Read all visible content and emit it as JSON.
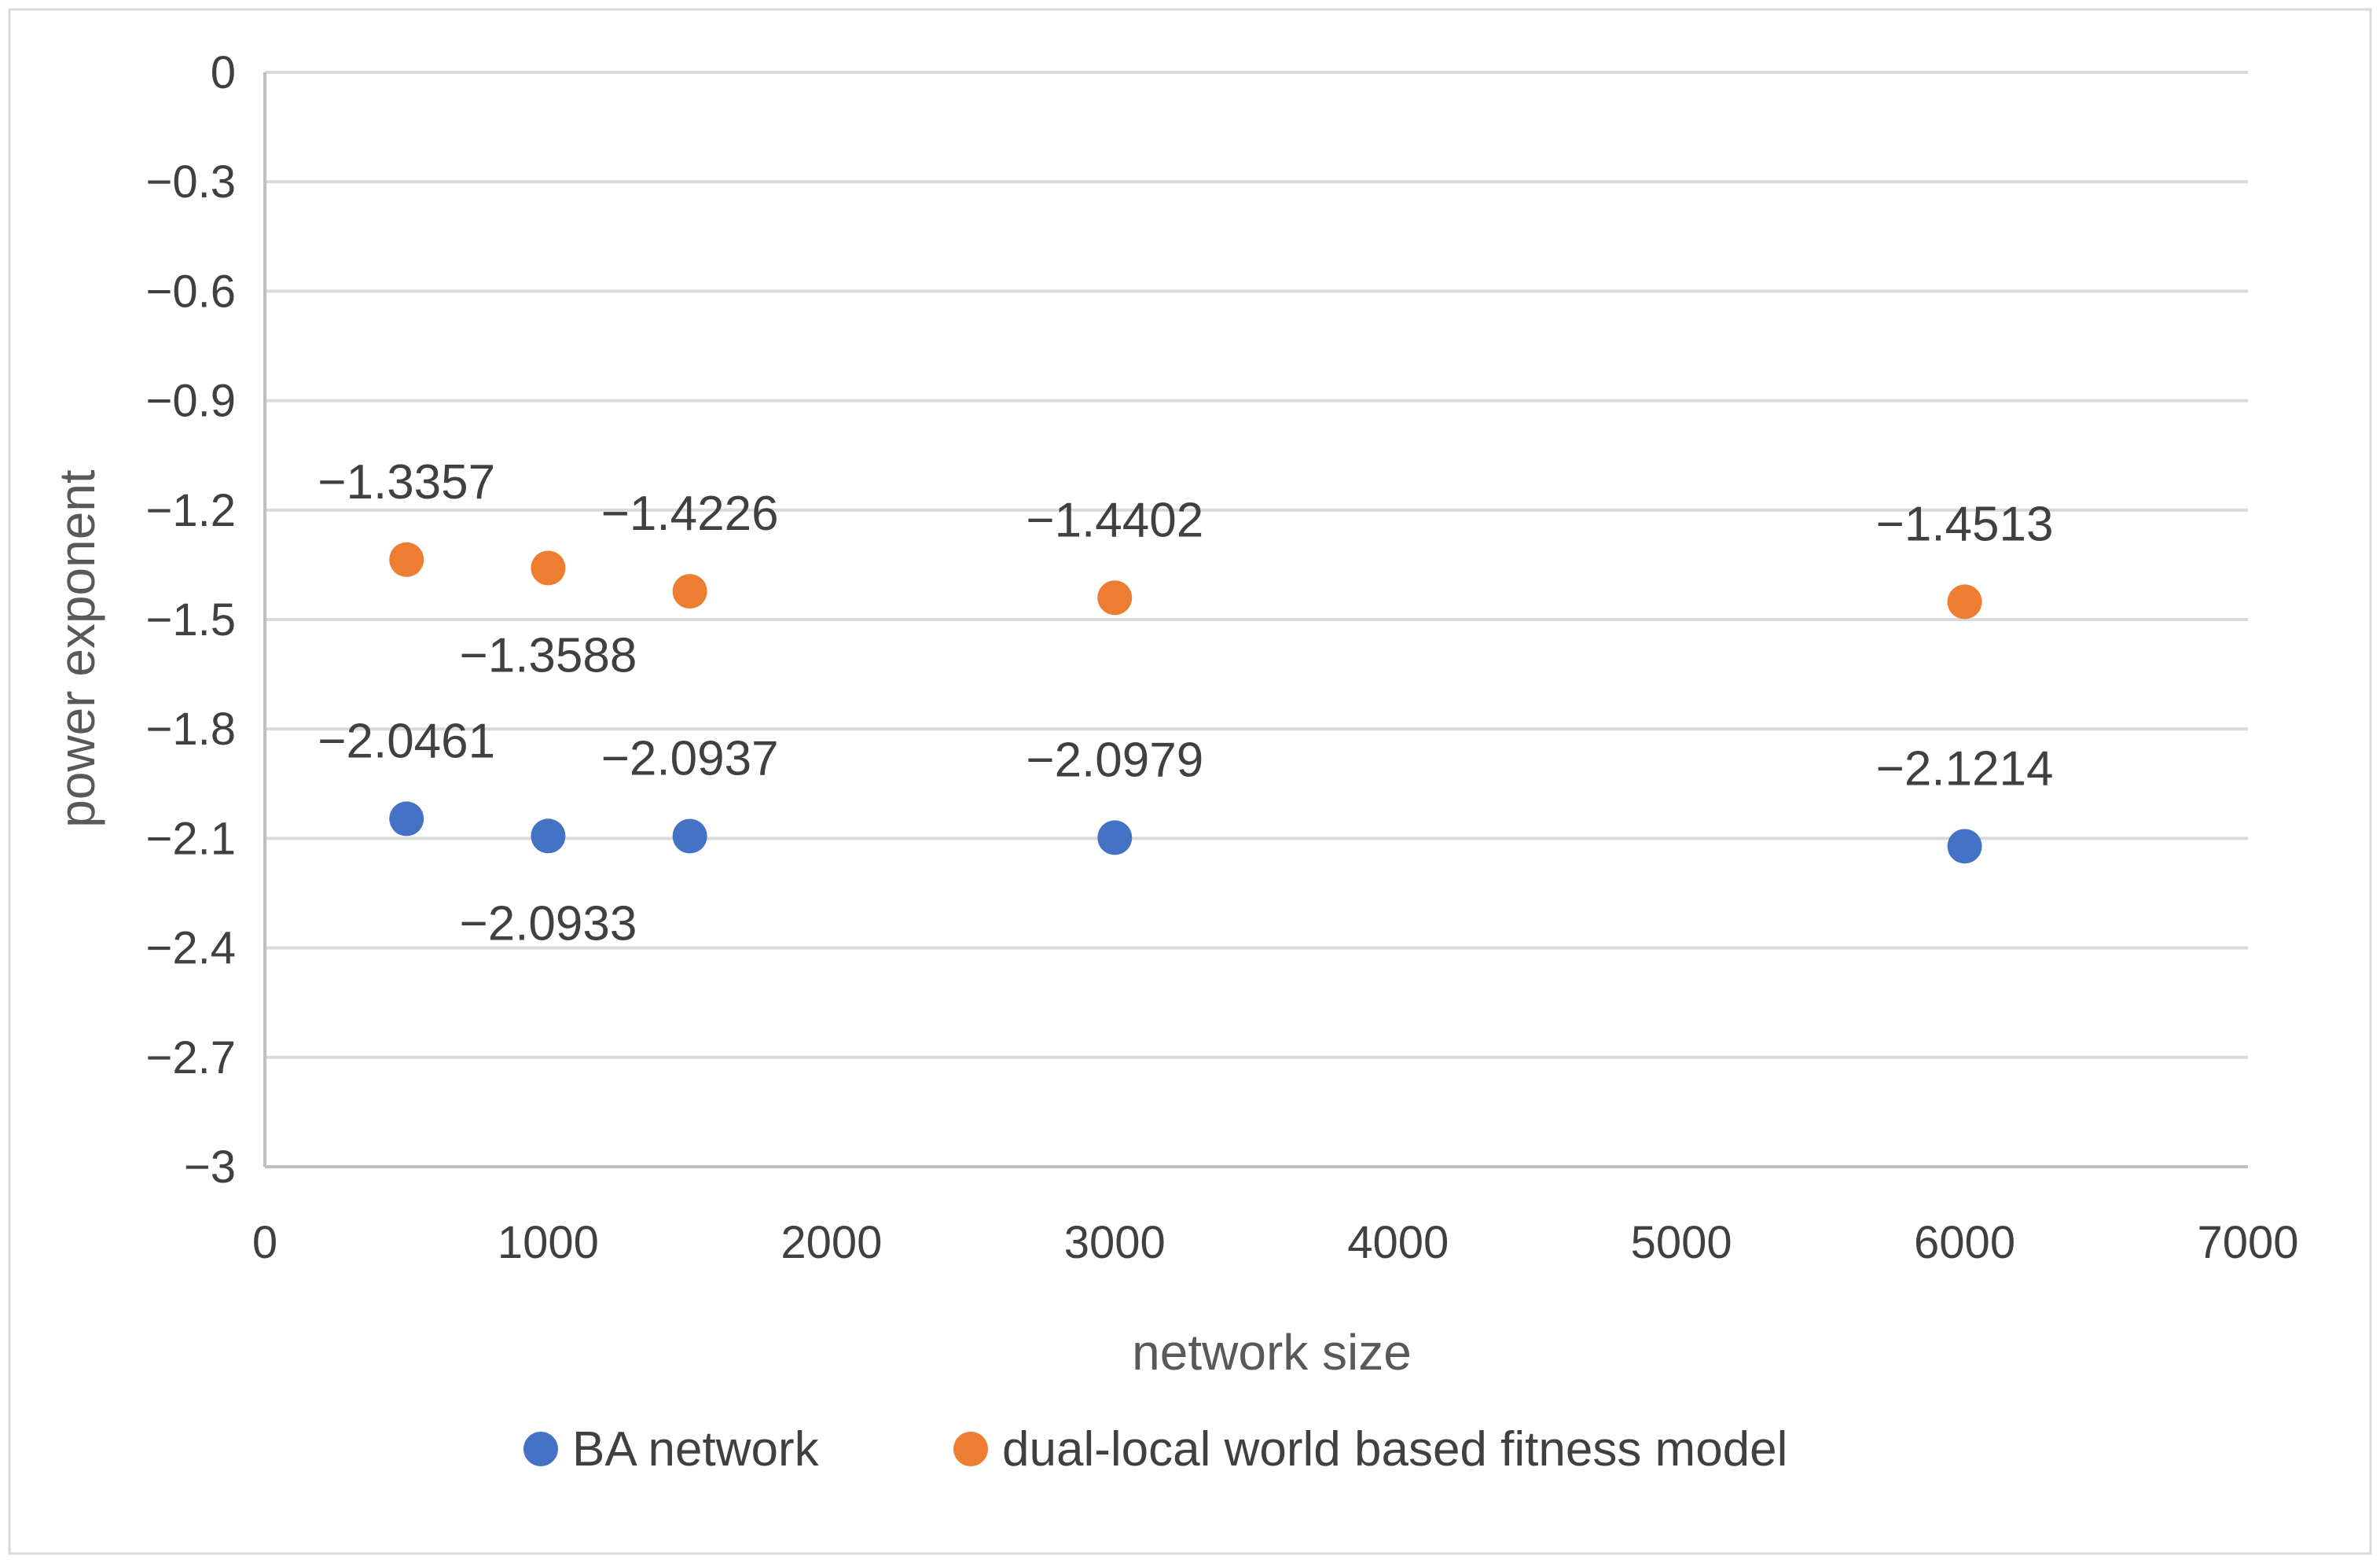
{
  "chart_data": {
    "type": "scatter",
    "title": "",
    "xlabel": "network size",
    "ylabel": "power exponent",
    "xlim": [
      0,
      7000
    ],
    "ylim": [
      -3,
      0
    ],
    "x_ticks": [
      0,
      1000,
      2000,
      3000,
      4000,
      5000,
      6000,
      7000
    ],
    "x_tick_labels": [
      "0",
      "1000",
      "2000",
      "3000",
      "4000",
      "5000",
      "6000",
      "7000"
    ],
    "y_ticks": [
      0,
      -0.3,
      -0.6,
      -0.9,
      -1.2,
      -1.5,
      -1.8,
      -2.1,
      -2.4,
      -2.7,
      -3
    ],
    "y_tick_labels": [
      "0",
      "−0.3",
      "−0.6",
      "−0.9",
      "−1.2",
      "−1.5",
      "−1.8",
      "−2.1",
      "−2.4",
      "−2.7",
      "−3"
    ],
    "grid": true,
    "legend_position": "bottom",
    "series": [
      {
        "name": "BA network",
        "color": "#4472C4",
        "x": [
          500,
          1000,
          1500,
          3000,
          6000
        ],
        "y": [
          -2.0461,
          -2.0933,
          -2.0937,
          -2.0979,
          -2.1214
        ],
        "labels": [
          "−2.0461",
          "−2.0933",
          "−2.0937",
          "−2.0979",
          "−2.1214"
        ],
        "label_positions": [
          "above",
          "below",
          "above",
          "above",
          "above"
        ]
      },
      {
        "name": "dual-local world based fitness model",
        "color": "#ED7D31",
        "x": [
          500,
          1000,
          1500,
          3000,
          6000
        ],
        "y": [
          -1.3357,
          -1.3588,
          -1.4226,
          -1.4402,
          -1.4513
        ],
        "labels": [
          "−1.3357",
          "−1.3588",
          "−1.4226",
          "−1.4402",
          "−1.4513"
        ],
        "label_positions": [
          "above",
          "below",
          "above",
          "above",
          "above"
        ]
      }
    ]
  },
  "colors": {
    "grid": "#D9D9D9",
    "axis": "#BFBFBF",
    "frame": "#D9D9D9"
  }
}
